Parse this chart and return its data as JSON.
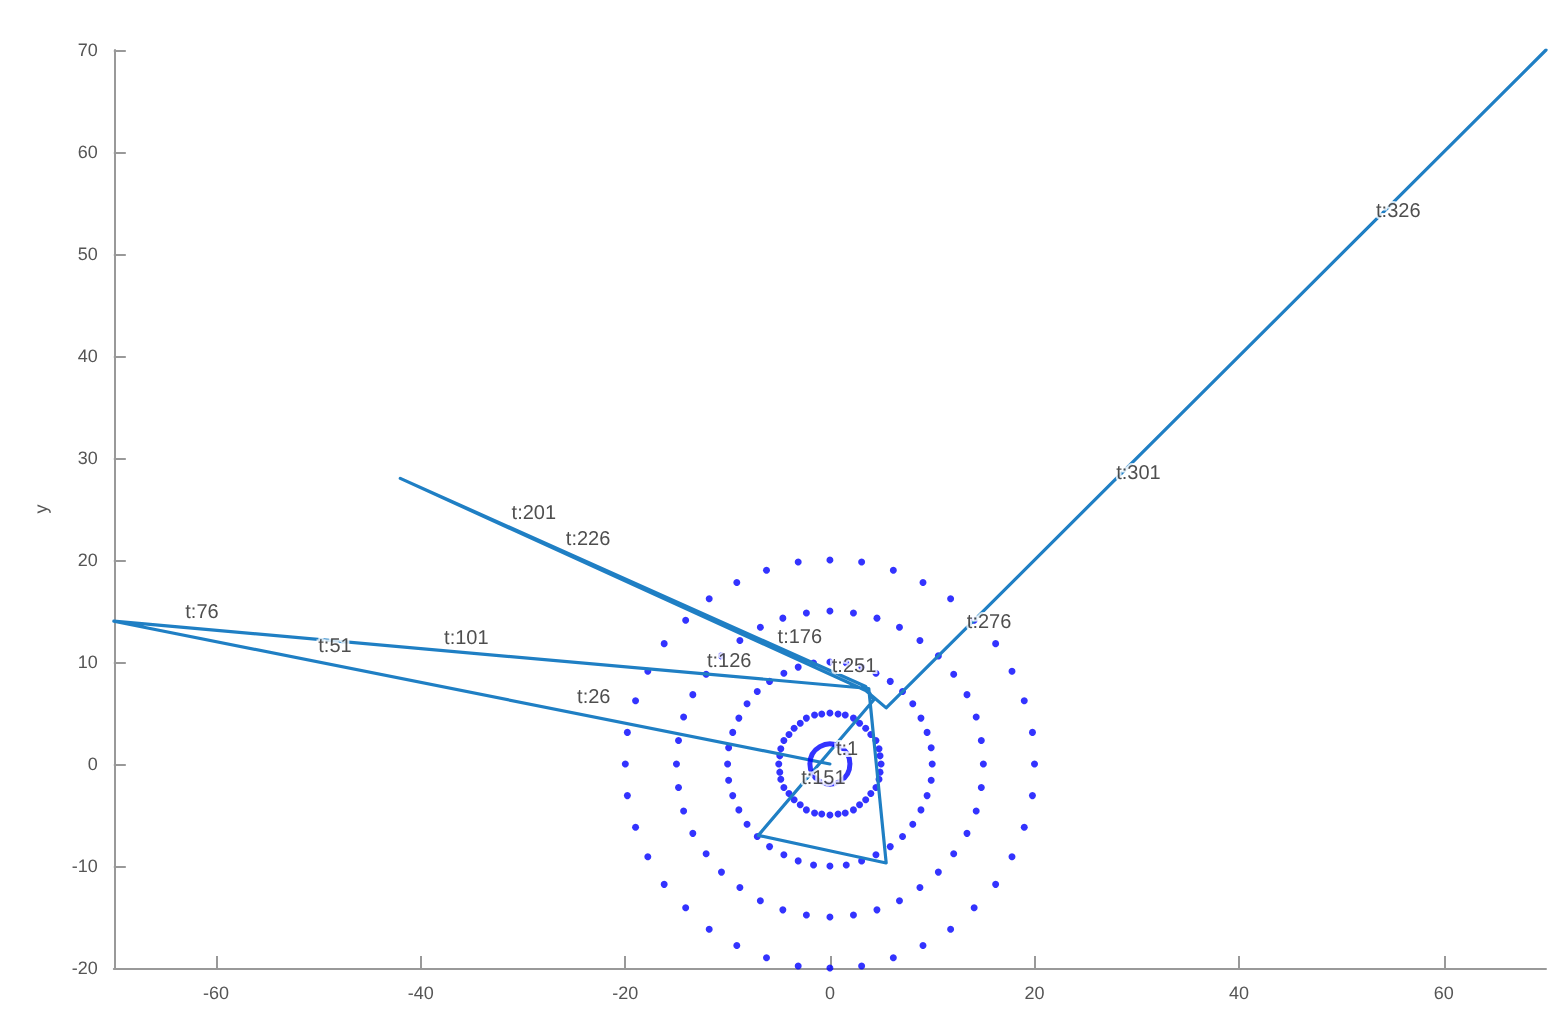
{
  "chart_data": {
    "type": "line",
    "ylabel": "y",
    "xlim": [
      -70,
      70
    ],
    "xticks": [
      -60,
      -40,
      -20,
      0,
      20,
      40,
      60
    ],
    "ylim": [
      -20,
      70
    ],
    "yticks": [
      -20,
      -10,
      0,
      10,
      20,
      30,
      40,
      50,
      60,
      70
    ],
    "grid": false,
    "series": [
      {
        "type": "scatter",
        "marker": "circle",
        "color": "#0000ff",
        "x": [
          5,
          4.9,
          4.8,
          4.5,
          4,
          3.5,
          2.9,
          2.3,
          1.5,
          0.8,
          0,
          -0.8,
          -1.5,
          -2.3,
          -2.9,
          -3.5,
          -4,
          -4.5,
          -4.8,
          -4.9,
          -5,
          -4.9,
          -4.8,
          -4.5,
          -4,
          -3.5,
          -2.9,
          -2.3,
          -1.5,
          -0.8,
          0,
          0.8,
          1.5,
          2.3,
          2.9,
          3.5,
          4,
          4.5,
          4.8,
          4.9,
          10,
          9.9,
          9.5,
          8.9,
          8.1,
          7.1,
          5.9,
          4.5,
          3.1,
          1.6,
          0,
          -1.6,
          -3.1,
          -4.5,
          -5.9,
          -7.1,
          -8.1,
          -8.9,
          -9.5,
          -9.9,
          -10,
          -9.9,
          -9.5,
          -8.9,
          -8.1,
          -7.1,
          -5.9,
          -4.5,
          -3.1,
          -1.6,
          0,
          1.6,
          3.1,
          4.5,
          5.9,
          7.1,
          8.1,
          8.9,
          9.5,
          9.9,
          15,
          14.8,
          14.3,
          13.4,
          12.1,
          10.6,
          8.8,
          6.8,
          4.6,
          2.3,
          0,
          -2.3,
          -4.6,
          -6.8,
          -8.8,
          -10.6,
          -12.1,
          -13.4,
          -14.3,
          -14.8,
          -15,
          -14.8,
          -14.3,
          -13.4,
          -12.1,
          -10.6,
          -8.8,
          -6.8,
          -4.6,
          -2.3,
          0,
          2.3,
          4.6,
          6.8,
          8.8,
          10.6,
          12.1,
          13.4,
          14.3,
          14.8,
          20,
          19.8,
          19,
          17.8,
          16.2,
          14.1,
          11.8,
          9.1,
          6.2,
          3.1,
          0,
          -3.1,
          -6.2,
          -9.1,
          -11.8,
          -14.1,
          -16.2,
          -17.8,
          -19,
          -19.8,
          -20,
          -19.8,
          -19,
          -17.8,
          -16.2,
          -14.1,
          -11.8,
          -9.1,
          -6.2,
          -3.1,
          0,
          3.1,
          6.2,
          9.1,
          11.8,
          14.1,
          16.2,
          17.8,
          19,
          19.8
        ],
        "values": [
          0,
          0.8,
          1.5,
          2.3,
          2.9,
          3.5,
          4,
          4.5,
          4.8,
          4.9,
          5,
          4.9,
          4.8,
          4.5,
          4,
          3.5,
          2.9,
          2.3,
          1.5,
          0.8,
          0,
          -0.8,
          -1.5,
          -2.3,
          -2.9,
          -3.5,
          -4,
          -4.5,
          -4.8,
          -4.9,
          -5,
          -4.9,
          -4.8,
          -4.5,
          -4,
          -3.5,
          -2.9,
          -2.3,
          -1.5,
          -0.8,
          0,
          1.6,
          3.1,
          4.5,
          5.9,
          7.1,
          8.1,
          8.9,
          9.5,
          9.9,
          10,
          9.9,
          9.5,
          8.9,
          8.1,
          7.1,
          5.9,
          4.5,
          3.1,
          1.6,
          0,
          -1.6,
          -3.1,
          -4.5,
          -5.9,
          -7.1,
          -8.1,
          -8.9,
          -9.5,
          -9.9,
          -10,
          -9.9,
          -9.5,
          -8.9,
          -8.1,
          -7.1,
          -5.9,
          -4.5,
          -3.1,
          -1.6,
          0,
          2.3,
          4.6,
          6.8,
          8.8,
          10.6,
          12.1,
          13.4,
          14.3,
          14.8,
          15,
          14.8,
          14.3,
          13.4,
          12.1,
          10.6,
          8.8,
          6.8,
          4.6,
          2.3,
          0,
          -2.3,
          -4.6,
          -6.8,
          -8.8,
          -10.6,
          -12.1,
          -13.4,
          -14.3,
          -14.8,
          -15,
          -14.8,
          -14.3,
          -13.4,
          -12.1,
          -10.6,
          -8.8,
          -6.8,
          -4.6,
          -2.3,
          0,
          3.1,
          6.2,
          9.1,
          11.8,
          14.1,
          16.2,
          17.8,
          19,
          19.8,
          20,
          19.8,
          19,
          17.8,
          16.2,
          14.1,
          11.8,
          9.1,
          6.2,
          3.1,
          0,
          -3.1,
          -6.2,
          -9.1,
          -11.8,
          -14.1,
          -16.2,
          -17.8,
          -19,
          -19.8,
          -20,
          -19.8,
          -19,
          -17.8,
          -16.2,
          -14.1,
          -11.8,
          -9.1,
          -6.2,
          -3.1
        ]
      },
      {
        "type": "bubble",
        "color": "#0000ff",
        "x": [
          0
        ],
        "values": [
          0
        ],
        "sizes": [
          1
        ]
      },
      {
        "marker": "none",
        "line_style": "solid",
        "color": "#1f7fc4",
        "x": [
          0,
          -70,
          3.8,
          5.5,
          -7,
          4.3,
          3.5,
          -42,
          3.5,
          5.5,
          70
        ],
        "values": [
          0,
          14,
          7.4,
          -9.7,
          -7,
          6.3,
          7.6,
          28,
          7.2,
          5.5,
          70
        ]
      }
    ],
    "annotations": [
      {
        "text": "t:1",
        "x": 0,
        "y": 0
      },
      {
        "text": "t:26",
        "x": -25.3,
        "y": 5.1
      },
      {
        "text": "t:51",
        "x": -50.6,
        "y": 10.1
      },
      {
        "text": "t:76",
        "x": -63.6,
        "y": 13.4
      },
      {
        "text": "t:101",
        "x": -38.3,
        "y": 10.9
      },
      {
        "text": "t:126",
        "x": -12.6,
        "y": 8.6
      },
      {
        "text": "t:151",
        "x": -3.4,
        "y": -2.8
      },
      {
        "text": "t:176",
        "x": -5.7,
        "y": 11
      },
      {
        "text": "t:201",
        "x": -31.7,
        "y": 23.1
      },
      {
        "text": "t:226",
        "x": -26.4,
        "y": 20.6
      },
      {
        "text": "t:251",
        "x": -0.4,
        "y": 8.1
      },
      {
        "text": "t:276",
        "x": 12.8,
        "y": 12.5
      },
      {
        "text": "t:301",
        "x": 27.4,
        "y": 27.1
      },
      {
        "text": "t:326",
        "x": 52.8,
        "y": 52.7
      }
    ]
  }
}
